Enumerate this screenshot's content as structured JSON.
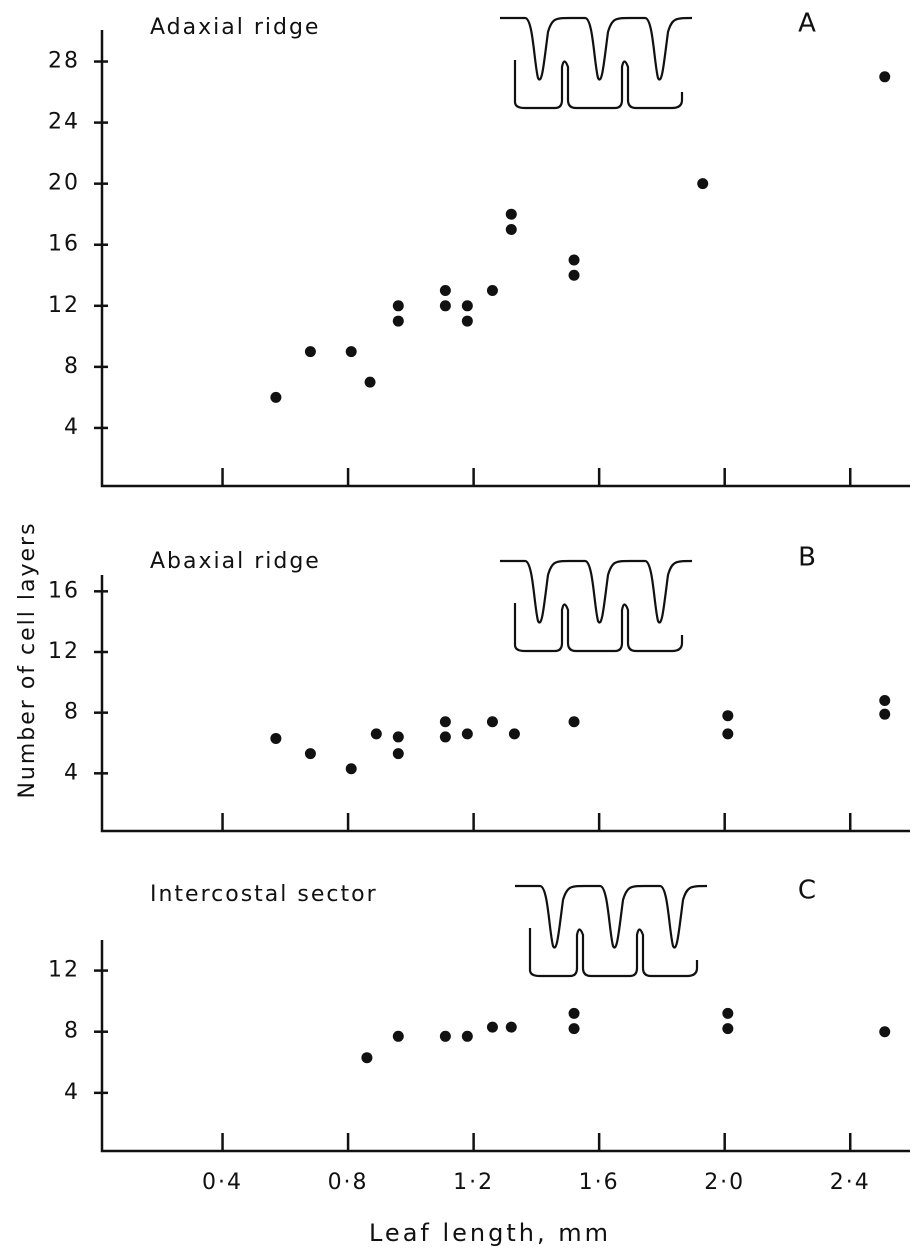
{
  "x_label": "Leaf length, mm",
  "y_label": "Number of cell layers",
  "chart_data": [
    {
      "type": "scatter",
      "title": "Adaxial ridge",
      "panel_label": "A",
      "color": "#111111",
      "x": [
        0.57,
        0.68,
        0.81,
        0.87,
        0.96,
        0.96,
        1.11,
        1.11,
        1.18,
        1.18,
        1.26,
        1.32,
        1.32,
        1.52,
        1.52,
        1.93,
        2.51
      ],
      "y": [
        6,
        9,
        9,
        7,
        12,
        11,
        13,
        12,
        12,
        11,
        13,
        18,
        17,
        15,
        14,
        20,
        27
      ],
      "xlim": [
        0,
        2.6
      ],
      "ylim": [
        0,
        30
      ],
      "xticks": [
        0.4,
        0.8,
        1.2,
        1.6,
        2.0,
        2.4
      ],
      "yticks": [
        4,
        8,
        12,
        16,
        20,
        24,
        28
      ]
    },
    {
      "type": "scatter",
      "title": "Abaxial ridge",
      "panel_label": "B",
      "color": "#111111",
      "x": [
        0.57,
        0.68,
        0.81,
        0.89,
        0.96,
        0.96,
        1.11,
        1.11,
        1.18,
        1.26,
        1.33,
        1.52,
        2.01,
        2.01,
        2.51,
        2.51
      ],
      "y": [
        6.3,
        5.3,
        4.3,
        6.6,
        6.4,
        5.3,
        7.4,
        6.4,
        6.6,
        7.4,
        6.6,
        7.4,
        7.8,
        6.6,
        8.8,
        7.9
      ],
      "xlim": [
        0,
        2.6
      ],
      "ylim": [
        0,
        18
      ],
      "xticks": [
        0.4,
        0.8,
        1.2,
        1.6,
        2.0,
        2.4
      ],
      "yticks": [
        4,
        8,
        12,
        16
      ]
    },
    {
      "type": "scatter",
      "title": "Intercostal sector",
      "panel_label": "C",
      "color": "#111111",
      "x": [
        0.86,
        0.96,
        1.11,
        1.18,
        1.26,
        1.32,
        1.52,
        1.52,
        2.01,
        2.01,
        2.51
      ],
      "y": [
        6.3,
        7.7,
        7.7,
        7.7,
        8.3,
        8.3,
        9.2,
        8.2,
        9.2,
        8.2,
        8.0
      ],
      "xlim": [
        0,
        2.6
      ],
      "ylim": [
        0,
        14
      ],
      "xticks": [
        {
          "value": 0.4,
          "label": "0·4"
        },
        {
          "value": 0.8,
          "label": "0·8"
        },
        {
          "value": 1.2,
          "label": "1·2"
        },
        {
          "value": 1.6,
          "label": "1·6"
        },
        {
          "value": 2.0,
          "label": "2·0"
        },
        {
          "value": 2.4,
          "label": "2·4"
        }
      ],
      "yticks": [
        4,
        8,
        12
      ]
    }
  ]
}
